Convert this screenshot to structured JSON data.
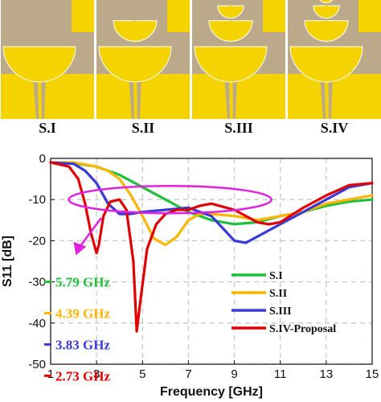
{
  "panels": {
    "labels": [
      "S.I",
      "S.II",
      "S.III",
      "S.IV"
    ],
    "stages": [
      1,
      2,
      3,
      4
    ],
    "colors": {
      "substrate": "#bba98a",
      "metal": "#f5d300",
      "outline": "#ffffff"
    }
  },
  "chart_data": {
    "type": "line",
    "xlabel": "Frequency [GHz]",
    "ylabel": "S11 [dB]",
    "xlim": [
      1,
      15
    ],
    "ylim": [
      -50,
      0
    ],
    "xticks": [
      1,
      3,
      5,
      7,
      9,
      11,
      13,
      15
    ],
    "yticks": [
      0,
      -10,
      -20,
      -30,
      -40,
      -50
    ],
    "grid": true,
    "legend_position": "bottom-right",
    "series": [
      {
        "name": "S.I",
        "color": "#1fbf3a",
        "x": [
          1,
          2,
          3,
          4,
          5,
          6,
          7,
          8,
          9,
          10,
          11,
          12,
          13,
          14,
          15
        ],
        "y": [
          -1,
          -1.2,
          -2,
          -4,
          -7,
          -10,
          -13,
          -15,
          -16,
          -15.5,
          -14,
          -13,
          -11.5,
          -10.5,
          -10
        ]
      },
      {
        "name": "S.II",
        "color": "#ffb400",
        "x": [
          1,
          2,
          3,
          3.5,
          4,
          4.5,
          5,
          5.5,
          6,
          6.5,
          7,
          7.5,
          8,
          9,
          10,
          11,
          12,
          13,
          14,
          15
        ],
        "y": [
          -1,
          -1,
          -2,
          -3,
          -5,
          -9,
          -14,
          -19.5,
          -21,
          -19,
          -15,
          -13.5,
          -13.5,
          -14,
          -15,
          -14,
          -13,
          -11,
          -10,
          -9
        ]
      },
      {
        "name": "S.III",
        "color": "#3a3ad6",
        "x": [
          1,
          2,
          2.5,
          3,
          3.5,
          4,
          4.5,
          5,
          6,
          7,
          8,
          8.5,
          9,
          9.5,
          10,
          11,
          12,
          13,
          14,
          15
        ],
        "y": [
          -1,
          -1.3,
          -3,
          -6,
          -11,
          -13.5,
          -13.5,
          -13,
          -12.5,
          -12,
          -14,
          -17,
          -20,
          -20.5,
          -19,
          -16,
          -13,
          -10,
          -7,
          -6
        ]
      },
      {
        "name": "S.IV-Proposal",
        "color": "#e00000",
        "x": [
          1,
          1.8,
          2.2,
          2.5,
          2.75,
          3,
          3.1,
          3.3,
          3.6,
          4,
          4.3,
          4.6,
          4.75,
          4.9,
          5.2,
          5.6,
          6,
          6.5,
          7,
          7.5,
          8,
          9,
          10,
          10.5,
          11,
          12,
          13,
          14,
          15
        ],
        "y": [
          -1,
          -2,
          -5,
          -11,
          -18,
          -23,
          -21,
          -14,
          -10.5,
          -10,
          -12.5,
          -25,
          -42,
          -35,
          -22,
          -16,
          -13.5,
          -12.5,
          -12.5,
          -11.5,
          -11,
          -12.5,
          -15.5,
          -16,
          -15.5,
          -12,
          -9,
          -6.5,
          -6
        ]
      }
    ],
    "annotations": [
      {
        "text": "5.79 GHz",
        "color": "#1fbf3a"
      },
      {
        "text": "4.39 GHz",
        "color": "#ffb400"
      },
      {
        "text": "3.83 GHz",
        "color": "#3a3ad6"
      },
      {
        "text": "2.73 GHz",
        "color": "#e00000"
      }
    ],
    "highlight_color": "#e020e0",
    "grid_color": "#c8c8c8"
  }
}
